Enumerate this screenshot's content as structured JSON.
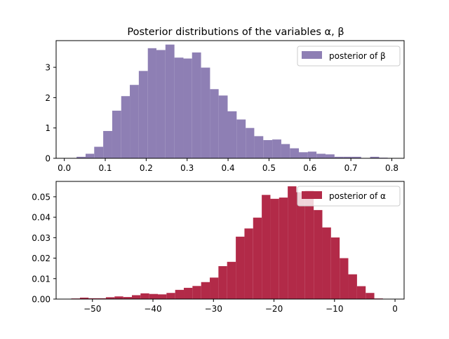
{
  "chart_data": [
    {
      "type": "bar",
      "title": "Posterior distributions of the variables α, β",
      "legend": {
        "label": "posterior of β",
        "placement": "top-right"
      },
      "color": "#8e7fb4",
      "xlim": [
        -0.02,
        0.83
      ],
      "ylim": [
        0,
        3.88
      ],
      "xticks": [
        0.0,
        0.1,
        0.2,
        0.3,
        0.4,
        0.5,
        0.6,
        0.7,
        0.8
      ],
      "xtick_labels": [
        "0.0",
        "0.1",
        "0.2",
        "0.3",
        "0.4",
        "0.5",
        "0.6",
        "0.7",
        "0.8"
      ],
      "yticks": [
        0,
        1,
        2,
        3
      ],
      "ytick_labels": [
        "0",
        "1",
        "2",
        "3"
      ],
      "bin_edges": [
        0.03,
        0.052,
        0.073,
        0.095,
        0.117,
        0.139,
        0.16,
        0.182,
        0.204,
        0.225,
        0.247,
        0.269,
        0.291,
        0.312,
        0.334,
        0.356,
        0.377,
        0.399,
        0.421,
        0.443,
        0.464,
        0.486,
        0.508,
        0.53,
        0.551,
        0.573,
        0.595,
        0.616,
        0.638,
        0.66,
        0.682,
        0.703,
        0.725,
        0.747,
        0.769,
        0.79
      ],
      "values": [
        0.05,
        0.15,
        0.38,
        0.9,
        1.57,
        2.05,
        2.42,
        2.88,
        3.63,
        3.57,
        3.75,
        3.32,
        3.29,
        3.49,
        2.99,
        2.28,
        2.07,
        1.55,
        1.28,
        1.0,
        0.73,
        0.6,
        0.62,
        0.47,
        0.33,
        0.2,
        0.22,
        0.15,
        0.13,
        0.05,
        0.05,
        0.05,
        0.0,
        0.05,
        0.02
      ]
    },
    {
      "type": "bar",
      "title": "",
      "legend": {
        "label": "posterior of α",
        "placement": "top-right"
      },
      "color": "#b22a48",
      "xlim": [
        -56.0,
        1.5
      ],
      "ylim": [
        0,
        0.0575
      ],
      "xticks": [
        -50,
        -40,
        -30,
        -20,
        -10,
        0
      ],
      "xtick_labels": [
        "−50",
        "−40",
        "−30",
        "−20",
        "−10",
        "0"
      ],
      "yticks": [
        0,
        0.01,
        0.02,
        0.03,
        0.04,
        0.05
      ],
      "ytick_labels": [
        "0.00",
        "0.01",
        "0.02",
        "0.03",
        "0.04",
        "0.05"
      ],
      "bin_edges": [
        -53.5,
        -52.07,
        -50.64,
        -49.21,
        -47.78,
        -46.34,
        -44.91,
        -43.48,
        -42.05,
        -40.62,
        -39.19,
        -37.76,
        -36.33,
        -34.9,
        -33.47,
        -32.04,
        -30.61,
        -29.18,
        -27.75,
        -26.31,
        -24.88,
        -23.45,
        -22.02,
        -20.59,
        -19.16,
        -17.73,
        -16.3,
        -14.87,
        -13.44,
        -12.01,
        -10.58,
        -9.15,
        -7.72,
        -6.28,
        -4.85,
        -3.42,
        -2.0
      ],
      "values": [
        0.0003,
        0.0007,
        0.0004,
        0.0004,
        0.0009,
        0.0013,
        0.001,
        0.0019,
        0.0028,
        0.0025,
        0.0023,
        0.003,
        0.0045,
        0.0055,
        0.0064,
        0.0083,
        0.0105,
        0.0161,
        0.0182,
        0.0305,
        0.0345,
        0.0398,
        0.0509,
        0.049,
        0.0496,
        0.0551,
        0.0522,
        0.053,
        0.0435,
        0.035,
        0.0301,
        0.02,
        0.0121,
        0.0063,
        0.003,
        0.0003
      ]
    }
  ]
}
